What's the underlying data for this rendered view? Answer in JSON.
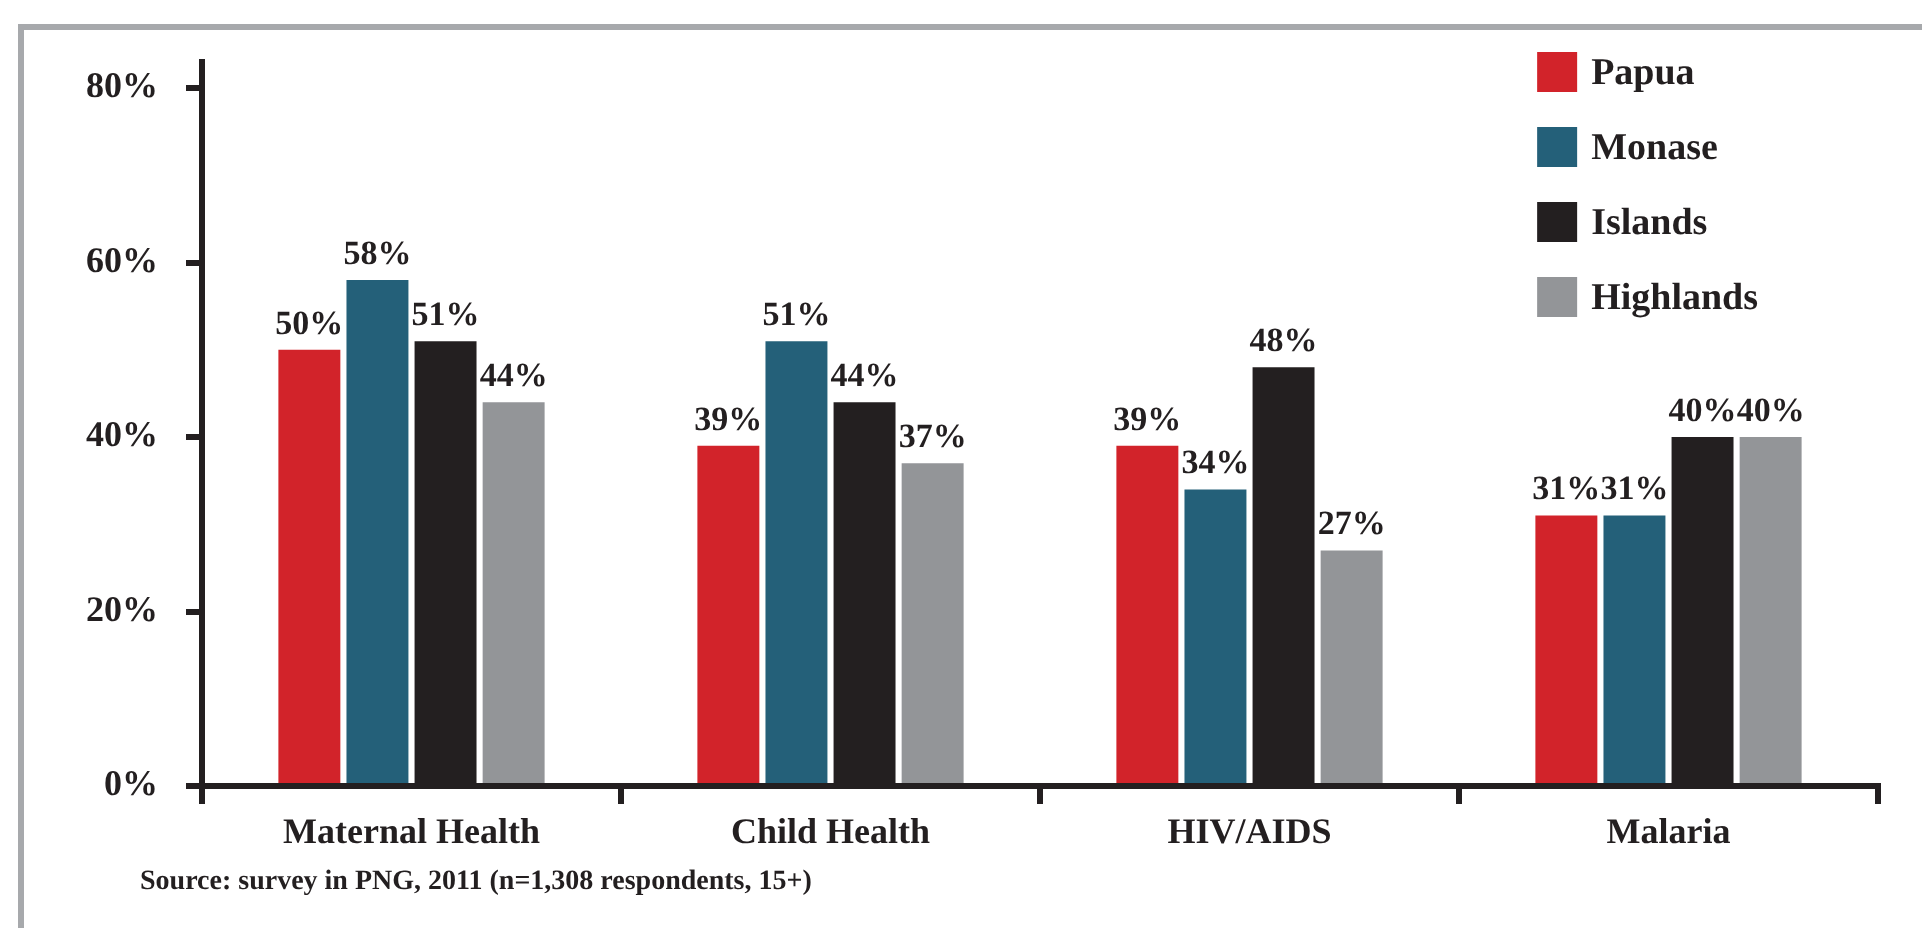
{
  "chart_data": {
    "type": "bar",
    "categories": [
      "Maternal Health",
      "Child Health",
      "HIV/AIDS",
      "Malaria"
    ],
    "series": [
      {
        "name": "Papua",
        "color": "#d2232a",
        "values": [
          50,
          39,
          39,
          31
        ],
        "value_labels": [
          "50%",
          "39%",
          "39%",
          "31%"
        ]
      },
      {
        "name": "Monase",
        "color": "#246079",
        "values": [
          58,
          51,
          34,
          31
        ],
        "value_labels": [
          "58%",
          "51%",
          "34%",
          "31%"
        ]
      },
      {
        "name": "Islands",
        "color": "#231f20",
        "values": [
          51,
          44,
          48,
          40
        ],
        "value_labels": [
          "51%",
          "44%",
          "48%",
          "40%"
        ]
      },
      {
        "name": "Highlands",
        "color": "#939598",
        "values": [
          44,
          37,
          27,
          40
        ],
        "value_labels": [
          "44%",
          "37%",
          "27%",
          "40%"
        ]
      }
    ],
    "ylim": [
      0,
      83
    ],
    "yticks": [
      {
        "value": 0,
        "label": "0%"
      },
      {
        "value": 20,
        "label": "20%"
      },
      {
        "value": 40,
        "label": "40%"
      },
      {
        "value": 60,
        "label": "60%"
      },
      {
        "value": 80,
        "label": "80%"
      }
    ],
    "legend": "top right",
    "annotations": [
      "Source: survey in PNG, 2011 (n=1,308 respondents, 15+)"
    ]
  }
}
